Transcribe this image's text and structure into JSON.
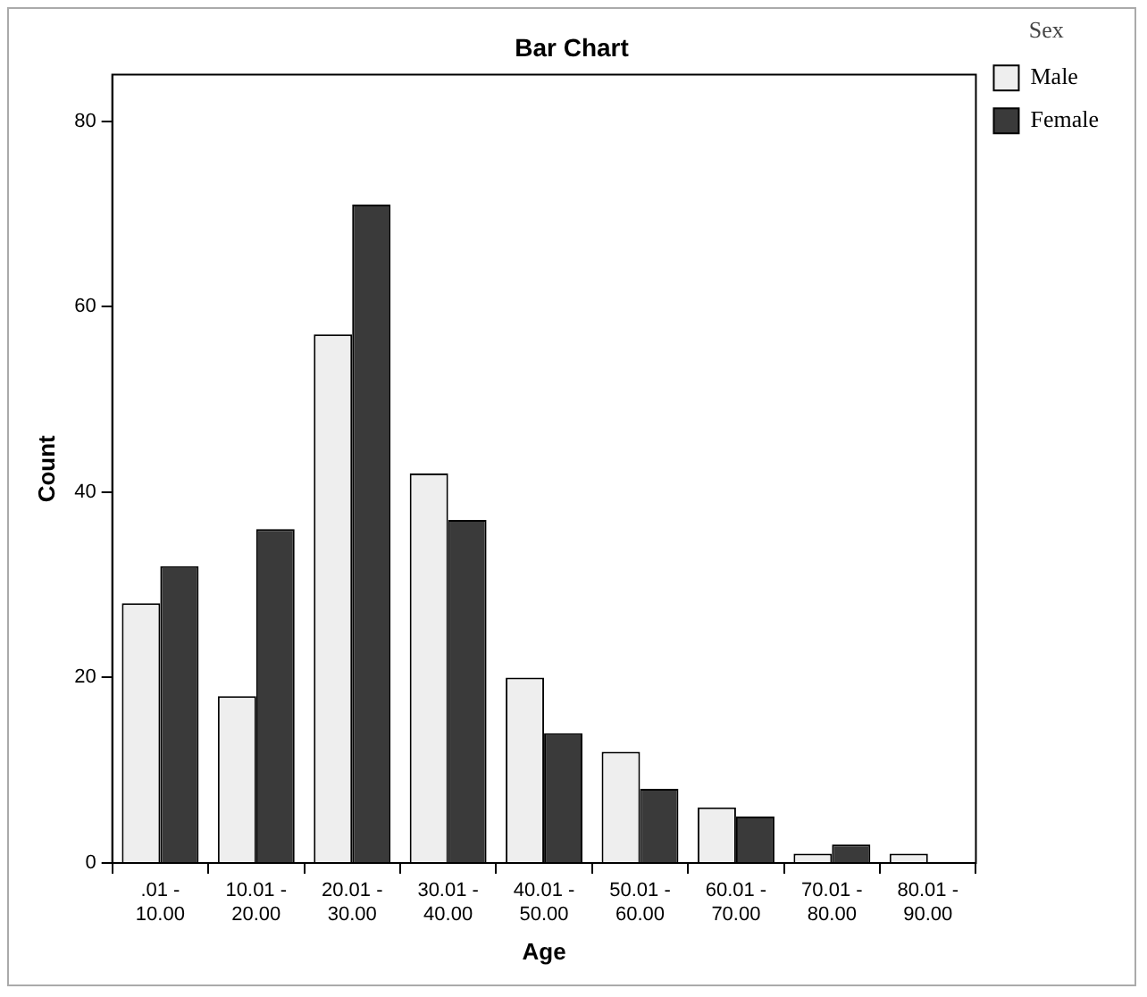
{
  "chart_data": {
    "type": "bar",
    "title": "Bar Chart",
    "xlabel": "Age",
    "ylabel": "Count",
    "legend_title": "Sex",
    "categories": [
      ".01 - 10.00",
      "10.01 - 20.00",
      "20.01 - 30.00",
      "30.01 - 40.00",
      "40.01 - 50.00",
      "50.01 - 60.00",
      "60.01 - 70.00",
      "70.01 - 80.00",
      "80.01 - 90.00"
    ],
    "series": [
      {
        "name": "Male",
        "color": "#eeeeee",
        "values": [
          28,
          18,
          57,
          42,
          20,
          12,
          6,
          1,
          1
        ]
      },
      {
        "name": "Female",
        "color": "#3a3a3a",
        "values": [
          32,
          36,
          71,
          37,
          14,
          8,
          5,
          2,
          null
        ]
      }
    ],
    "ylim": [
      0,
      85
    ],
    "yticks": [
      0,
      20,
      40,
      60,
      80
    ],
    "grid": false,
    "legend": "top right"
  }
}
